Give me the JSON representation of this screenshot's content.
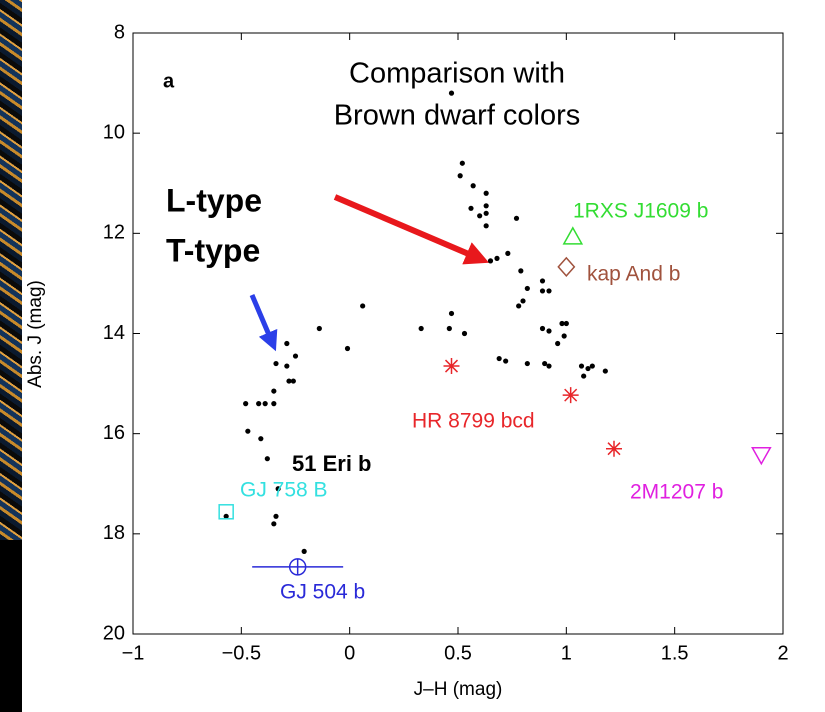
{
  "chart_data": {
    "type": "scatter",
    "panel_label": "a",
    "title_lines": [
      "Comparison with",
      "Brown dwarf colors"
    ],
    "annotations": [
      {
        "text": "L-type",
        "color": "#e8181c"
      },
      {
        "text": "T-type",
        "color": "#2b3fe8"
      },
      {
        "text": "51 Eri b",
        "color": "#a24a48"
      }
    ],
    "x_label": "J–H (mag)",
    "y_label": "Abs. J (mag)",
    "xlim": [
      -1,
      2
    ],
    "ylim": [
      20,
      8
    ],
    "xticks": [
      {
        "value": -1,
        "label": "−1"
      },
      {
        "value": -0.5,
        "label": "−0.5"
      },
      0,
      0.5,
      1,
      1.5,
      2
    ],
    "yticks": [
      8,
      10,
      12,
      14,
      16,
      18,
      20
    ],
    "dots": {
      "color": "#000000",
      "x": [
        0.47,
        0.52,
        0.51,
        0.57,
        0.63,
        0.63,
        0.56,
        0.6,
        0.63,
        0.63,
        0.77,
        0.73,
        0.68,
        0.65,
        0.79,
        0.89,
        0.82,
        0.89,
        0.92,
        0.8,
        0.78,
        0.47,
        0.46,
        0.53,
        0.98,
        1.0,
        0.89,
        0.92,
        0.99,
        0.96,
        0.69,
        0.72,
        0.82,
        0.9,
        0.92,
        1.07,
        1.1,
        1.12,
        1.08,
        1.18,
        0.33,
        0.06,
        -0.01,
        -0.14,
        -0.29,
        -0.34,
        -0.25,
        -0.29,
        -0.28,
        -0.26,
        -0.35,
        -0.39,
        -0.35,
        -0.42,
        -0.48,
        -0.47,
        -0.41,
        -0.38,
        -0.33,
        -0.34,
        -0.35,
        -0.21,
        -0.57
      ],
      "y": [
        9.2,
        10.6,
        10.85,
        11.05,
        11.2,
        11.45,
        11.5,
        11.65,
        11.6,
        11.85,
        11.7,
        12.4,
        12.5,
        12.55,
        12.75,
        12.95,
        13.1,
        13.15,
        13.15,
        13.35,
        13.45,
        13.6,
        13.9,
        14.0,
        13.8,
        13.8,
        13.9,
        13.95,
        14.05,
        14.2,
        14.5,
        14.55,
        14.6,
        14.6,
        14.65,
        14.65,
        14.7,
        14.65,
        14.85,
        14.75,
        13.9,
        13.45,
        14.3,
        13.9,
        14.2,
        14.6,
        14.45,
        14.65,
        14.95,
        14.95,
        15.15,
        15.4,
        15.4,
        15.4,
        15.4,
        15.95,
        16.1,
        16.5,
        17.1,
        17.65,
        17.8,
        18.35,
        17.65
      ]
    },
    "objects": [
      {
        "name": "1RXS J1609 b",
        "color": "#33dd33",
        "marker": "triangle",
        "x": [
          1.03
        ],
        "y": [
          12.07
        ]
      },
      {
        "name": "kap And b",
        "color": "#a0523d",
        "marker": "diamond",
        "x": [
          1.0
        ],
        "y": [
          12.67
        ]
      },
      {
        "name": "HR 8799 bcd",
        "color": "#e8262a",
        "marker": "asterisk",
        "x": [
          0.47,
          1.02,
          1.22
        ],
        "y": [
          14.65,
          15.23,
          16.3
        ]
      },
      {
        "name": "2M1207 b",
        "color": "#e020e0",
        "marker": "triangle-down",
        "x": [
          1.9
        ],
        "y": [
          16.42
        ]
      },
      {
        "name": "GJ 758 B",
        "color": "#33e0e0",
        "marker": "square",
        "x": [
          -0.57
        ],
        "y": [
          17.56
        ]
      },
      {
        "name": "GJ 504 b",
        "color": "#2a2ad8",
        "marker": "circle-plus",
        "x": [
          -0.24
        ],
        "y": [
          18.66
        ],
        "xerr": [
          0.21
        ]
      }
    ]
  }
}
